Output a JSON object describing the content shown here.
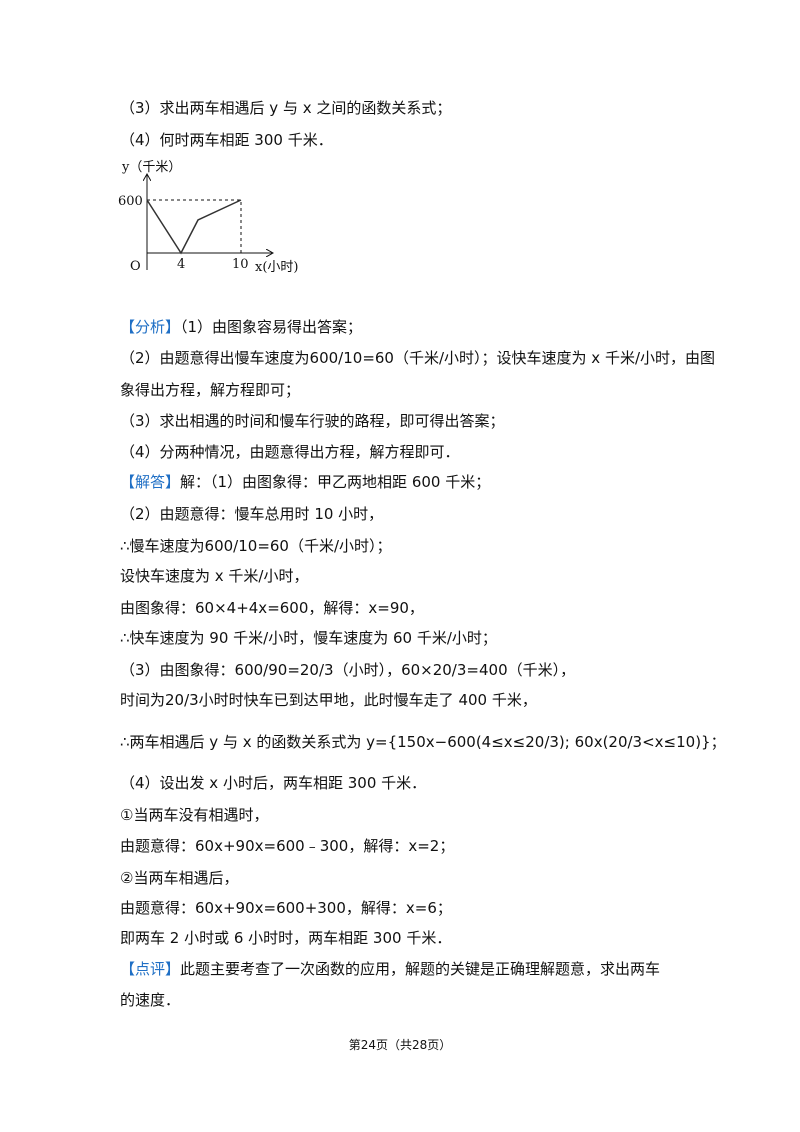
{
  "problem": [
    "（3）求出两车相遇后 y 与 x 之间的函数关系式；",
    "（4）何时两车相距 300 千米．"
  ],
  "figure": {
    "y_label": "y（千米）",
    "y_value": "600",
    "origin": "O",
    "x_tick_1": "4",
    "x_tick_2": "10",
    "x_label": "x(小时)"
  },
  "analysis": {
    "label": "【分析】",
    "lines": [
      "（1）由图象容易得出答案；",
      "（2）由题意得出慢车速度为600/10=60（千米/小时）；设快车速度为 x 千米/小时，由图",
      "象得出方程，解方程即可；",
      "（3）求出相遇的时间和慢车行驶的路程，即可得出答案；",
      "（4）分两种情况，由题意得出方程，解方程即可．"
    ]
  },
  "solution": {
    "label": "【解答】",
    "lines": [
      "解：（1）由图象得：甲乙两地相距 600 千米；",
      "（2）由题意得：慢车总用时 10 小时，",
      "∴慢车速度为600/10=60（千米/小时）；",
      "设快车速度为 x 千米/小时，",
      "由图象得：60×4+4x=600，解得：x=90，",
      "∴快车速度为 90 千米/小时，慢车速度为 60 千米/小时；",
      "（3）由图象得：600/90=20/3（小时），60×20/3=400（千米），",
      "时间为20/3小时时快车已到达甲地，此时慢车走了 400 千米，",
      "∴两车相遇后 y 与 x 的函数关系式为 y={150x−600(4≤x≤20/3); 60x(20/3<x≤10)}；",
      "（4）设出发 x 小时后，两车相距 300 千米．",
      "①当两车没有相遇时，",
      "由题意得：60x+90x=600﹣300，解得：x=2；",
      "②当两车相遇后，",
      "由题意得：60x+90x=600+300，解得：x=6；",
      "即两车 2 小时或 6 小时时，两车相距 300 千米．"
    ]
  },
  "comment": {
    "label": "【点评】",
    "lines": [
      "此题主要考查了一次函数的应用，解题的关键是正确理解题意，求出两车",
      "的速度．"
    ]
  },
  "footer": "第24页（共28页）"
}
